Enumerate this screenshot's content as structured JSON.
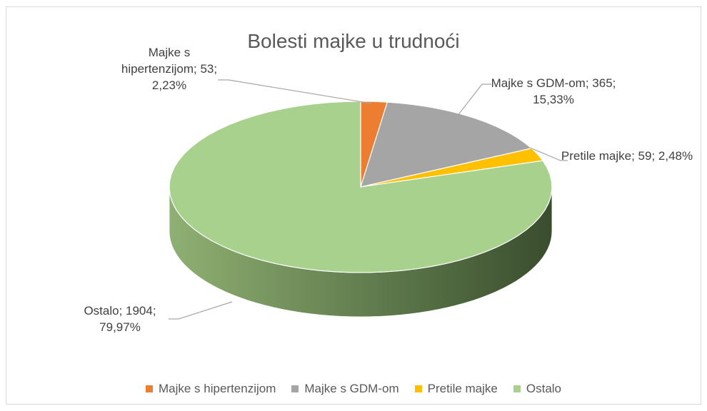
{
  "chart_data": {
    "type": "pie",
    "title": "Bolesti majke u trudnoći",
    "categories": [
      "Majke s hipertenzijom",
      "Majke s GDM-om",
      "Pretile majke",
      "Ostalo"
    ],
    "values": [
      53,
      365,
      59,
      1904
    ],
    "value_labels": [
      "Majke s hipertenzijom; 53; 2,23%",
      "Majke s GDM-om; 365; 15,33%",
      "Pretile majke; 59; 2,48%",
      "Ostalo; 1904; 79,97%"
    ],
    "colors": [
      "#ed7d31",
      "#a5a5a5",
      "#ffc000",
      "#a9d18e"
    ],
    "legend": "bottom"
  }
}
